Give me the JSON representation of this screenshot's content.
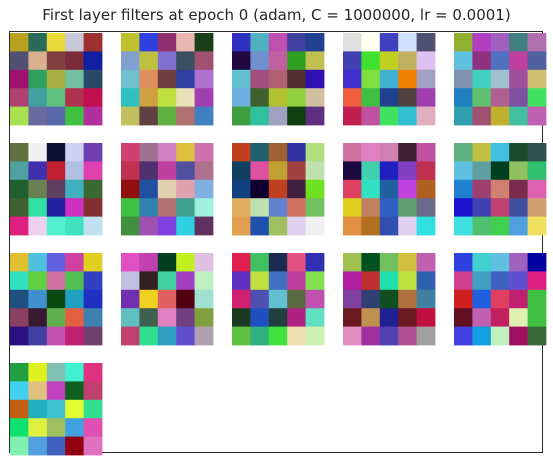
{
  "chart_data": {
    "type": "heatmap",
    "title": "First layer filters at epoch 0 (adam, C = 1000000, lr = 0.0001)",
    "grid_columns": 5,
    "filter_size": [
      5,
      5
    ],
    "filters": [
      [
        [
          "#b8a020",
          "#2a6a5a",
          "#e8d838",
          "#c8c8d8",
          "#a03030"
        ],
        [
          "#505070",
          "#d8b090",
          "#804040",
          "#7a2a3a",
          "#1020a0"
        ],
        [
          "#a01070",
          "#30a060",
          "#a8b040",
          "#70c0a0",
          "#284868"
        ],
        [
          "#b04070",
          "#40a0a0",
          "#60c080",
          "#b03050",
          "#c01050"
        ],
        [
          "#a8e050",
          "#6a6aa0",
          "#5868a8",
          "#40c040",
          "#b030a0"
        ]
      ],
      [
        [
          "#c0c030",
          "#3040e0",
          "#903070",
          "#e8b8b0",
          "#1a4018"
        ],
        [
          "#80a0d0",
          "#c0c040",
          "#8070d0",
          "#385060",
          "#a05070"
        ],
        [
          "#70c0d0",
          "#e09060",
          "#704040",
          "#3040a0",
          "#b070d0"
        ],
        [
          "#30c0c0",
          "#d0a040",
          "#c0e040",
          "#e8e0b8",
          "#a040b0"
        ],
        [
          "#c0c060",
          "#604040",
          "#60b040",
          "#b07070",
          "#4080c0"
        ]
      ],
      [
        [
          "#3030c0",
          "#50b0c0",
          "#c050b0",
          "#4040a0",
          "#204090"
        ],
        [
          "#200840",
          "#7090d0",
          "#c060a0",
          "#30a020",
          "#c0c050"
        ],
        [
          "#60c0d0",
          "#a05080",
          "#b06070",
          "#503030",
          "#3010b0"
        ],
        [
          "#70b0e0",
          "#406030",
          "#b0c030",
          "#90d040",
          "#d0c0a0"
        ],
        [
          "#40a040",
          "#30c0a0",
          "#a0a0c0",
          "#104010",
          "#603080"
        ]
      ],
      [
        [
          "#e0e0e0",
          "#fffff0",
          "#4040c0",
          "#d0e0ff",
          "#505070"
        ],
        [
          "#4040b0",
          "#40e030",
          "#c0d020",
          "#c0b060",
          "#e0c0f0"
        ],
        [
          "#4030d0",
          "#80e040",
          "#40b0d0",
          "#f08000",
          "#a0a0c0"
        ],
        [
          "#f06040",
          "#40c040",
          "#204090",
          "#504040",
          "#a040b0"
        ],
        [
          "#c02050",
          "#c050a0",
          "#40e060",
          "#30c0d0",
          "#e0b0c0"
        ]
      ],
      [
        [
          "#90b030",
          "#b040c0",
          "#a060c0",
          "#408080",
          "#b070b0"
        ],
        [
          "#60c0e0",
          "#903080",
          "#5070c0",
          "#c040a0",
          "#5060a0"
        ],
        [
          "#8090b0",
          "#40d0c0",
          "#a0c0d0",
          "#a050a0",
          "#d0c070"
        ],
        [
          "#2080c0",
          "#60c070",
          "#b06090",
          "#8050a0",
          "#40e060"
        ],
        [
          "#30a0b0",
          "#a05070",
          "#c0b030",
          "#40c0a0",
          "#c060b0"
        ]
      ],
      [
        [
          "#607040",
          "#f0f0f0",
          "#101030",
          "#d0d0f0",
          "#7040b0"
        ],
        [
          "#50a0a0",
          "#4030b0",
          "#c02030",
          "#b0c0e0",
          "#e040b0"
        ],
        [
          "#206030",
          "#6a8050",
          "#604060",
          "#40b0c0",
          "#3a6a30"
        ],
        [
          "#406030",
          "#30e0a0",
          "#2020a0",
          "#d030c0",
          "#803030"
        ],
        [
          "#e02080",
          "#f0d0f0",
          "#50f0d0",
          "#40e0c0",
          "#c0e0f0"
        ]
      ],
      [
        [
          "#d04070",
          "#a07090",
          "#d080c0",
          "#e0c040",
          "#d070b0"
        ],
        [
          "#c03050",
          "#503070",
          "#c040a0",
          "#5050a0",
          "#b07090"
        ],
        [
          "#901010",
          "#2050a0",
          "#e0d0b0",
          "#e0a0b0",
          "#80b0e0"
        ],
        [
          "#40c040",
          "#3080b0",
          "#b07070",
          "#40a090",
          "#a0f0e0"
        ],
        [
          "#409040",
          "#a050b0",
          "#8040e0",
          "#30d0e0",
          "#603060"
        ]
      ],
      [
        [
          "#c04020",
          "#206070",
          "#a06030",
          "#3030a0",
          "#b0e080"
        ],
        [
          "#104060",
          "#e050a0",
          "#c0a030",
          "#a04040",
          "#c0e0b0"
        ],
        [
          "#104080",
          "#100030",
          "#c04020",
          "#402040",
          "#70e020"
        ],
        [
          "#e0b060",
          "#c0e0b0",
          "#6080d0",
          "#d07060",
          "#70c060"
        ],
        [
          "#e0a050",
          "#2050b0",
          "#a0c060",
          "#e0d0f0",
          "#f0f0f0"
        ]
      ],
      [
        [
          "#d070a0",
          "#e080c0",
          "#d080b0",
          "#402030",
          "#c050a0"
        ],
        [
          "#1a0a40",
          "#40d0b0",
          "#2020c0",
          "#8040c0",
          "#c03050"
        ],
        [
          "#e04060",
          "#30e0c0",
          "#2060a0",
          "#c040e0",
          "#b06020"
        ],
        [
          "#e0d020",
          "#c08060",
          "#3060c0",
          "#60a070",
          "#6a6a8a"
        ],
        [
          "#e09040",
          "#b07020",
          "#3050b0",
          "#e0d0f0",
          "#30e0e0"
        ]
      ],
      [
        [
          "#60b080",
          "#c0c040",
          "#40c0e0",
          "#1a4a2a",
          "#305050"
        ],
        [
          "#60c0e0",
          "#60a0a0",
          "#004020",
          "#90c060",
          "#30c070"
        ],
        [
          "#2080d0",
          "#a04070",
          "#d08070",
          "#7a2a4a",
          "#e060b0"
        ],
        [
          "#2010d0",
          "#4040b0",
          "#c04070",
          "#4050a0",
          "#d0a070"
        ],
        [
          "#40e0e0",
          "#50c070",
          "#40d050",
          "#50a0e0",
          "#f0e060"
        ]
      ],
      [
        [
          "#e0c030",
          "#50c0e0",
          "#6060e0",
          "#d040a0",
          "#e0d020"
        ],
        [
          "#30e0c0",
          "#60d040",
          "#d070a0",
          "#50c050",
          "#3040c0"
        ],
        [
          "#205080",
          "#4090d0",
          "#0a4a10",
          "#20a0c0",
          "#2030c0"
        ],
        [
          "#8a4060",
          "#3a1a30",
          "#60b050",
          "#e06040",
          "#4080b0"
        ],
        [
          "#2a1080",
          "#4040a0",
          "#c050b0",
          "#c02070",
          "#704070"
        ]
      ],
      [
        [
          "#e050c0",
          "#c040b0",
          "#004020",
          "#c0f020",
          "#e0c0e0"
        ],
        [
          "#c0c0e0",
          "#302020",
          "#40d0a0",
          "#a040c0",
          "#c0f0c0"
        ],
        [
          "#7030b0",
          "#f0d020",
          "#e06060",
          "#500010",
          "#a0e0d0"
        ],
        [
          "#60c0c0",
          "#406050",
          "#e080c0",
          "#704080",
          "#80a040"
        ],
        [
          "#c04070",
          "#30e090",
          "#30a0c0",
          "#6050d0",
          "#b0a0b0"
        ]
      ],
      [
        [
          "#e02050",
          "#40c060",
          "#1a2a50",
          "#e05080",
          "#3030b0"
        ],
        [
          "#6030c0",
          "#c0e040",
          "#4070c0",
          "#c040a0",
          "#80e050"
        ],
        [
          "#d02070",
          "#5050b0",
          "#60c0d0",
          "#5a6a40",
          "#c050b0"
        ],
        [
          "#1a3a20",
          "#2050c0",
          "#204040",
          "#b02080",
          "#60e0c0"
        ],
        [
          "#60c040",
          "#30b080",
          "#40e040",
          "#f0e0b0",
          "#d0f0b0"
        ]
      ],
      [
        [
          "#a0c050",
          "#005020",
          "#70c060",
          "#d0c040",
          "#c060b0"
        ],
        [
          "#b020a0",
          "#c03030",
          "#20e0b0",
          "#c0e040",
          "#3060b0"
        ],
        [
          "#8040a0",
          "#304070",
          "#105020",
          "#b07040",
          "#4080a0"
        ],
        [
          "#6a1a20",
          "#c09050",
          "#202090",
          "#6a1a20",
          "#c01040"
        ],
        [
          "#e090c0",
          "#a030a0",
          "#5040b0",
          "#b05090",
          "#a0a0a0"
        ]
      ],
      [
        [
          "#3040e0",
          "#40d0d0",
          "#60c0e0",
          "#a060c0",
          "#0000a0"
        ],
        [
          "#d04090",
          "#40a0c0",
          "#4060c0",
          "#6050d0",
          "#e02080"
        ],
        [
          "#d02020",
          "#2060e0",
          "#e04060",
          "#c02070",
          "#40c040"
        ],
        [
          "#601020",
          "#c060b0",
          "#c02060",
          "#e0f0b0",
          "#40c040"
        ],
        [
          "#4040e0",
          "#10a0e0",
          "#c0f0c0",
          "#a01060",
          "#3a6a3a"
        ]
      ],
      [
        [
          "#20a040",
          "#e0f020",
          "#80c0b0",
          "#40f0d0",
          "#e03080"
        ],
        [
          "#40d0f0",
          "#e0c080",
          "#c040c0",
          "#106020",
          "#c04070"
        ],
        [
          "#c06010",
          "#20b0c0",
          "#40c0d0",
          "#e0ff30",
          "#30e090"
        ],
        [
          "#10e070",
          "#e0f040",
          "#a0c060",
          "#40a0e0",
          "#e050b0"
        ],
        [
          "#80f0b0",
          "#50a0e0",
          "#4060c0",
          "#900010",
          "#e070c0"
        ]
      ]
    ]
  }
}
